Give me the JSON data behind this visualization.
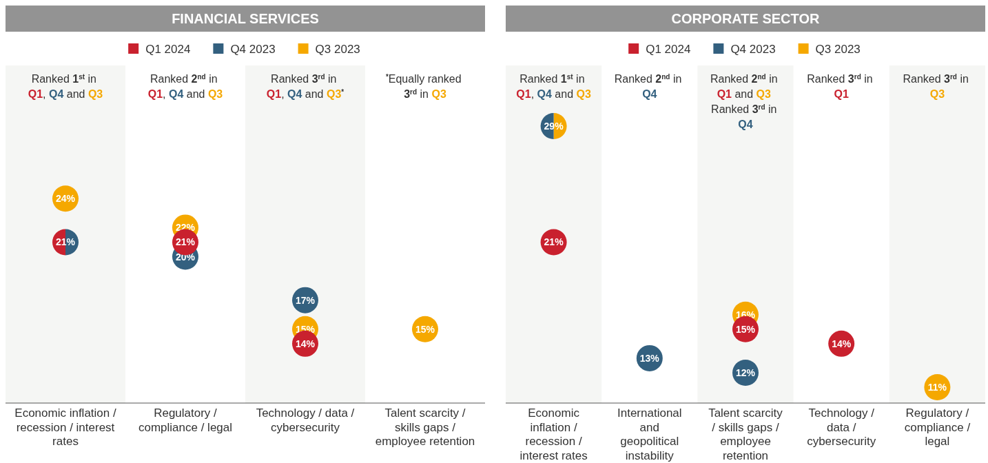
{
  "chart_data": [
    {
      "type": "scatter",
      "title": "FINANCIAL SERVICES",
      "legend": "top",
      "tick_labels": "x",
      "categories": [
        "Economic inflation / recession / interest rates",
        "Regulatory / compliance / legal",
        "Technology / data / cybersecurity",
        "Talent scarcity / skills gaps / employee retention"
      ],
      "series": [
        {
          "name": "Q1 2024",
          "color": "#c9212e",
          "values": [
            21,
            21,
            14,
            null
          ],
          "value_labels": [
            "21%",
            "21%",
            "14%",
            null
          ]
        },
        {
          "name": "Q4 2023",
          "color": "#33607f",
          "values": [
            21,
            20,
            17,
            null
          ],
          "value_labels": [
            null,
            "20%",
            "17%",
            null
          ]
        },
        {
          "name": "Q3 2023",
          "color": "#f5a800",
          "values": [
            24,
            22,
            15,
            15
          ],
          "value_labels": [
            "24%",
            "22%",
            "15%",
            "15%"
          ]
        }
      ],
      "annotations": [
        "Ranked 1$^{st}$ in Q1, Q4 and Q3",
        "Ranked 2$^{nd}$ in Q1, Q4 and Q3",
        "Ranked 3$^{rd}$ in Q1, Q4 and Q3$^{*}$",
        "$^{*}$Equally ranked 3$^{rd}$ in Q3"
      ]
    },
    {
      "type": "scatter",
      "title": "CORPORATE SECTOR",
      "legend": "top",
      "tick_labels": "x",
      "categories": [
        "Economic inflation / recession / interest rates",
        "International and geopolitical instability",
        "Talent scarcity / skills gaps / employee retention",
        "Technology / data / cybersecurity",
        "Regulatory / compliance / legal"
      ],
      "series": [
        {
          "name": "Q1 2024",
          "color": "#c9212e",
          "values": [
            21,
            null,
            15,
            14,
            null
          ],
          "value_labels": [
            "21%",
            null,
            "15%",
            "14%",
            null
          ]
        },
        {
          "name": "Q4 2023",
          "color": "#33607f",
          "values": [
            29,
            13,
            12,
            null,
            null
          ],
          "value_labels": [
            "29%",
            "13%",
            "12%",
            null,
            null
          ]
        },
        {
          "name": "Q3 2023",
          "color": "#f5a800",
          "values": [
            29,
            null,
            16,
            null,
            11
          ],
          "value_labels": [
            null,
            null,
            "16%",
            null,
            "11%"
          ]
        }
      ],
      "annotations": [
        "Ranked 1$^{st}$ in Q1, Q4 and Q3",
        "Ranked 2$^{nd}$ in Q4",
        "Ranked 2$^{nd}$ in Q1 and Q3 Ranked 3$^{rd}$ in Q4",
        "Ranked 3$^{rd}$ in Q1",
        "Ranked 3$^{rd}$ in Q3"
      ]
    }
  ]
}
